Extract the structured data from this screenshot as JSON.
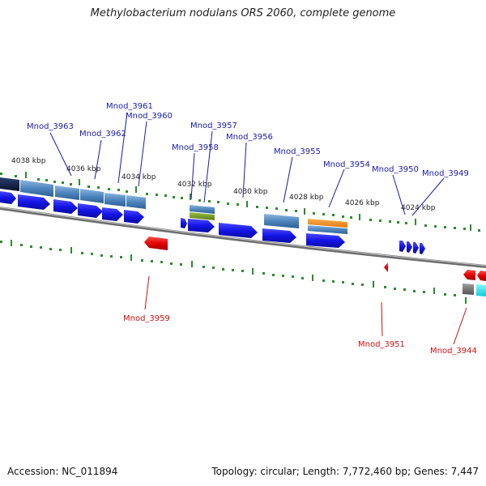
{
  "title": "Methylobacterium nodulans ORS 2060, complete genome",
  "footer": {
    "accession": "Accession: NC_011894",
    "summary": "Topology: circular; Length: 7,772,460 bp; Genes: 7,447"
  },
  "colors": {
    "forward_gene": "#1a1ae6",
    "reverse_gene": "#e60000",
    "backbone": "#6e6e6e",
    "tick": "#2e8b2e",
    "forward_label": "#1a1aa8",
    "reverse_label": "#cc1111",
    "feature_blue": "#5b8ec4",
    "feature_navy": "#0c1e4a",
    "feature_orange": "#f08a1c",
    "feature_olive": "#6b8e23",
    "feature_cyan": "#20e0e8",
    "feature_gray": "#707070"
  },
  "scale": {
    "unit": "kbp",
    "labels": [
      "4038 kbp",
      "4036 kbp",
      "4034 kbp",
      "4032 kbp",
      "4030 kbp",
      "4028 kbp",
      "4026 kbp",
      "4024 kbp"
    ]
  },
  "genes_forward": [
    "Mnod_3963",
    "Mnod_3962",
    "Mnod_3961",
    "Mnod_3960",
    "Mnod_3958",
    "Mnod_3957",
    "Mnod_3956",
    "Mnod_3955",
    "Mnod_3954",
    "Mnod_3950",
    "Mnod_3949"
  ],
  "genes_reverse": [
    "Mnod_3959",
    "Mnod_3951",
    "Mnod_3944"
  ]
}
